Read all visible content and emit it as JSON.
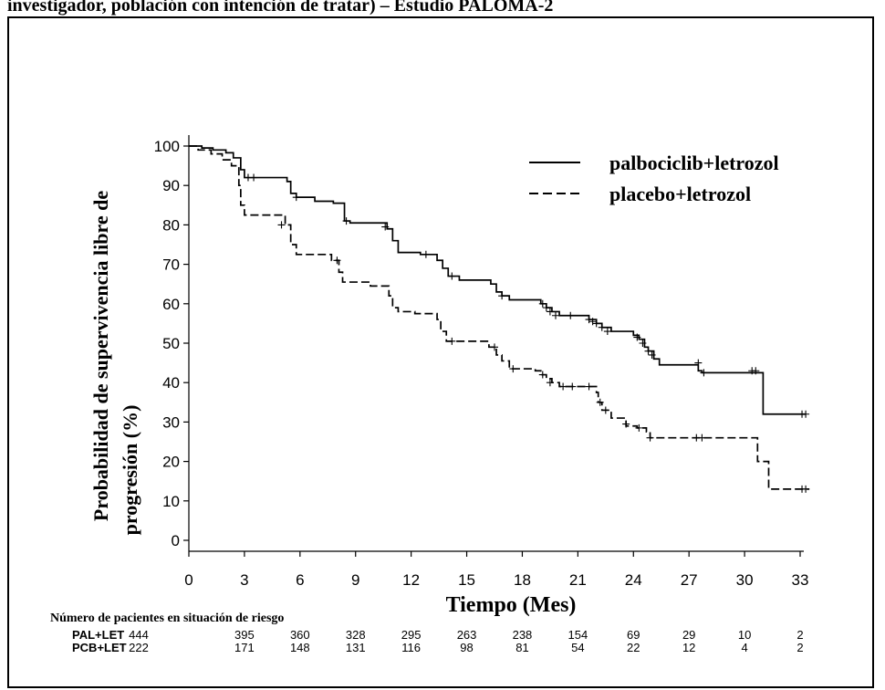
{
  "heading": "investigador, población con intención de tratar) – Estudio PALOMA-2",
  "chart_data": {
    "type": "line",
    "xlabel": "Tiempo (Mes)",
    "ylabel_line1": "Probabilidad de supervivencia libre de",
    "ylabel_line2": "progresión (%)",
    "xlim": [
      0,
      33
    ],
    "ylim": [
      0,
      100
    ],
    "xticks": [
      0,
      3,
      6,
      9,
      12,
      15,
      18,
      21,
      24,
      27,
      30,
      33
    ],
    "yticks": [
      0,
      10,
      20,
      30,
      40,
      50,
      60,
      70,
      80,
      90,
      100
    ],
    "legend_position": "top-right",
    "series": [
      {
        "name": "palbociclib+letrozol",
        "style": "solid",
        "color": "#000000",
        "steps": [
          [
            0,
            100
          ],
          [
            0.7,
            99.5
          ],
          [
            1.3,
            99
          ],
          [
            2,
            98.3
          ],
          [
            2.4,
            97
          ],
          [
            2.8,
            94
          ],
          [
            3.0,
            92
          ],
          [
            5.3,
            91
          ],
          [
            5.5,
            88
          ],
          [
            5.8,
            87
          ],
          [
            6.8,
            86
          ],
          [
            7.8,
            85.5
          ],
          [
            8.4,
            81
          ],
          [
            8.7,
            80.5
          ],
          [
            10.7,
            79
          ],
          [
            11.0,
            76
          ],
          [
            11.3,
            73
          ],
          [
            12.5,
            72.5
          ],
          [
            13.4,
            71
          ],
          [
            13.7,
            69
          ],
          [
            14.0,
            67
          ],
          [
            14.6,
            66
          ],
          [
            16.3,
            65
          ],
          [
            16.6,
            63
          ],
          [
            16.9,
            62
          ],
          [
            17.3,
            61
          ],
          [
            19.0,
            60
          ],
          [
            19.3,
            59
          ],
          [
            19.6,
            58
          ],
          [
            20.0,
            57
          ],
          [
            21.6,
            56
          ],
          [
            22.0,
            55
          ],
          [
            22.3,
            54
          ],
          [
            22.8,
            53
          ],
          [
            24.0,
            52
          ],
          [
            24.3,
            51
          ],
          [
            24.6,
            49
          ],
          [
            24.8,
            48
          ],
          [
            25.1,
            46
          ],
          [
            25.4,
            44.5
          ],
          [
            27.5,
            43
          ],
          [
            27.7,
            42.5
          ],
          [
            31.0,
            32
          ],
          [
            33.3,
            32
          ]
        ],
        "censored": [
          [
            3.2,
            92
          ],
          [
            3.5,
            92
          ],
          [
            5.8,
            87
          ],
          [
            8.5,
            81
          ],
          [
            10.6,
            79.5
          ],
          [
            12.8,
            72.5
          ],
          [
            14.2,
            67
          ],
          [
            16.9,
            62
          ],
          [
            19.1,
            60
          ],
          [
            19.3,
            59
          ],
          [
            19.5,
            58
          ],
          [
            19.8,
            57
          ],
          [
            20.6,
            57
          ],
          [
            21.6,
            56
          ],
          [
            21.8,
            55.5
          ],
          [
            22.0,
            55
          ],
          [
            22.3,
            54
          ],
          [
            22.6,
            53
          ],
          [
            24.2,
            51.5
          ],
          [
            24.5,
            50
          ],
          [
            24.8,
            48
          ],
          [
            25.0,
            47
          ],
          [
            27.5,
            45
          ],
          [
            27.8,
            42.5
          ],
          [
            30.4,
            43
          ],
          [
            30.6,
            43
          ],
          [
            33.1,
            32
          ],
          [
            33.3,
            32
          ]
        ]
      },
      {
        "name": "placebo+letrozol",
        "style": "dashed",
        "color": "#000000",
        "steps": [
          [
            0,
            100
          ],
          [
            0.5,
            99
          ],
          [
            1.2,
            98
          ],
          [
            1.8,
            96.5
          ],
          [
            2.3,
            95
          ],
          [
            2.7,
            90
          ],
          [
            2.8,
            85
          ],
          [
            3.0,
            82.5
          ],
          [
            5.2,
            80
          ],
          [
            5.5,
            75
          ],
          [
            5.8,
            72.5
          ],
          [
            7.7,
            71
          ],
          [
            8.1,
            68
          ],
          [
            8.3,
            65.5
          ],
          [
            9.8,
            64.5
          ],
          [
            10.8,
            62
          ],
          [
            11.0,
            59
          ],
          [
            11.3,
            58
          ],
          [
            12.2,
            57.5
          ],
          [
            13.4,
            56
          ],
          [
            13.6,
            53
          ],
          [
            13.9,
            50.5
          ],
          [
            16.2,
            49
          ],
          [
            16.6,
            47
          ],
          [
            16.9,
            45.5
          ],
          [
            17.3,
            43.5
          ],
          [
            18.7,
            43
          ],
          [
            19.0,
            42
          ],
          [
            19.3,
            41
          ],
          [
            19.6,
            40
          ],
          [
            20.0,
            39
          ],
          [
            22.0,
            37.5
          ],
          [
            22.1,
            35
          ],
          [
            22.3,
            33
          ],
          [
            22.8,
            31
          ],
          [
            23.6,
            29
          ],
          [
            24.2,
            28.5
          ],
          [
            24.7,
            27.5
          ],
          [
            24.9,
            26
          ],
          [
            30.5,
            26
          ],
          [
            30.7,
            20
          ],
          [
            31.3,
            13
          ],
          [
            33.5,
            13
          ]
        ],
        "censored": [
          [
            5.0,
            80
          ],
          [
            8.0,
            71
          ],
          [
            14.2,
            50.5
          ],
          [
            16.5,
            49
          ],
          [
            17.5,
            43.5
          ],
          [
            19.1,
            42
          ],
          [
            19.5,
            40
          ],
          [
            20.2,
            39
          ],
          [
            20.7,
            39
          ],
          [
            21.6,
            39
          ],
          [
            22.2,
            35
          ],
          [
            22.5,
            33
          ],
          [
            23.6,
            29.5
          ],
          [
            24.3,
            28.5
          ],
          [
            24.9,
            26
          ],
          [
            27.4,
            26
          ],
          [
            27.7,
            26
          ],
          [
            33.1,
            13
          ],
          [
            33.3,
            13
          ]
        ]
      }
    ],
    "risk_table": {
      "title": "Número de pacientes en situación de riesgo",
      "rows": [
        {
          "label": "PAL+LET",
          "values": [
            "444",
            "395",
            "360",
            "328",
            "295",
            "263",
            "238",
            "154",
            "69",
            "29",
            "10",
            "2"
          ]
        },
        {
          "label": "PCB+LET",
          "values": [
            "222",
            "171",
            "148",
            "131",
            "116",
            "98",
            "81",
            "54",
            "22",
            "12",
            "4",
            "2"
          ]
        }
      ]
    }
  }
}
